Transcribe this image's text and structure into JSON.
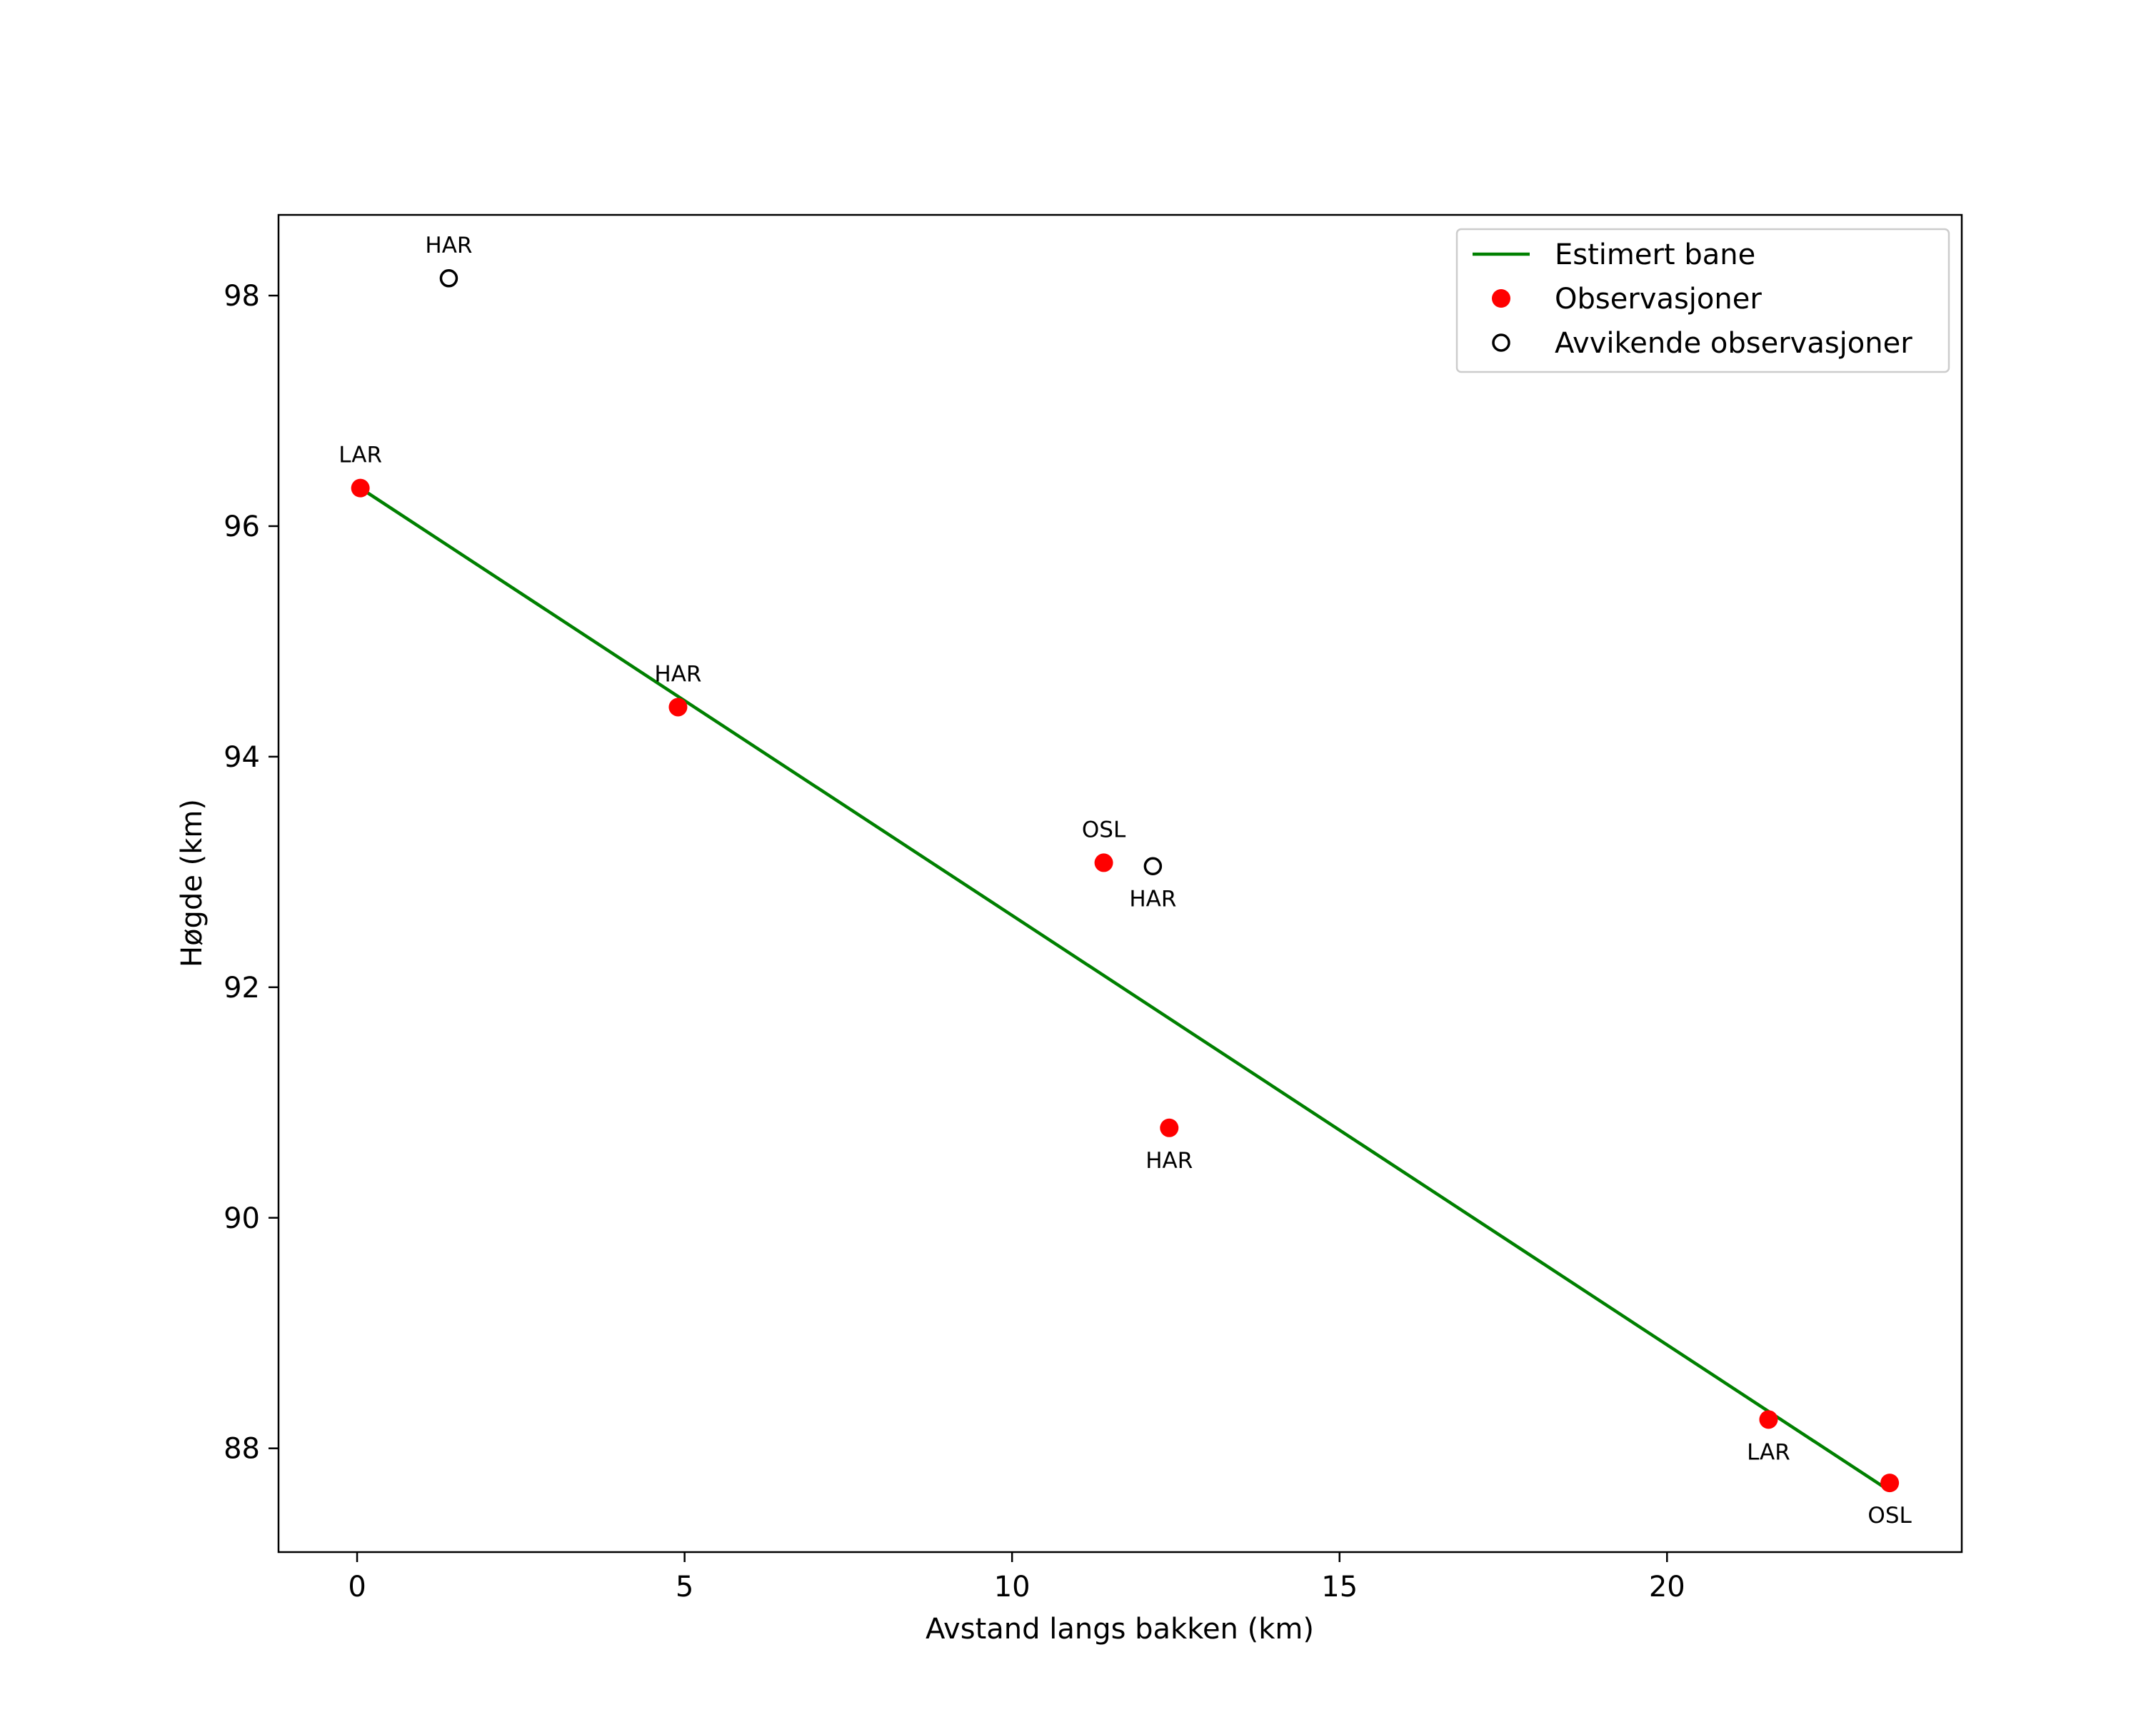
{
  "chart_data": {
    "type": "scatter",
    "title": "",
    "xlabel": "Avstand langs bakken (km)",
    "ylabel": "Høgde (km)",
    "xlim": [
      -1.2,
      24.5
    ],
    "ylim": [
      87.1,
      98.7
    ],
    "xticks": [
      0,
      5,
      10,
      15,
      20
    ],
    "yticks": [
      88,
      90,
      92,
      94,
      96,
      98
    ],
    "grid": false,
    "legend_position": "top-right",
    "colors": {
      "line": "#008000",
      "observations": "#ff0000",
      "outliers": "#000000"
    },
    "series": [
      {
        "name": "Estimert bane",
        "kind": "line",
        "points": [
          {
            "x": 0.05,
            "y": 96.33
          },
          {
            "x": 23.35,
            "y": 87.65
          }
        ]
      },
      {
        "name": "Observasjoner",
        "kind": "scatter-filled",
        "points": [
          {
            "x": 0.05,
            "y": 96.33,
            "label": "LAR",
            "label_pos": "above"
          },
          {
            "x": 4.9,
            "y": 94.43,
            "label": "HAR",
            "label_pos": "above"
          },
          {
            "x": 11.4,
            "y": 93.08,
            "label": "OSL",
            "label_pos": "above"
          },
          {
            "x": 12.4,
            "y": 90.78,
            "label": "HAR",
            "label_pos": "below"
          },
          {
            "x": 21.55,
            "y": 88.25,
            "label": "LAR",
            "label_pos": "below"
          },
          {
            "x": 23.4,
            "y": 87.7,
            "label": "OSL",
            "label_pos": "below"
          }
        ]
      },
      {
        "name": "Avvikende observasjoner",
        "kind": "scatter-open",
        "points": [
          {
            "x": 1.4,
            "y": 98.15,
            "label": "HAR",
            "label_pos": "above"
          },
          {
            "x": 12.15,
            "y": 93.05,
            "label": "HAR",
            "label_pos": "below"
          }
        ]
      }
    ]
  }
}
